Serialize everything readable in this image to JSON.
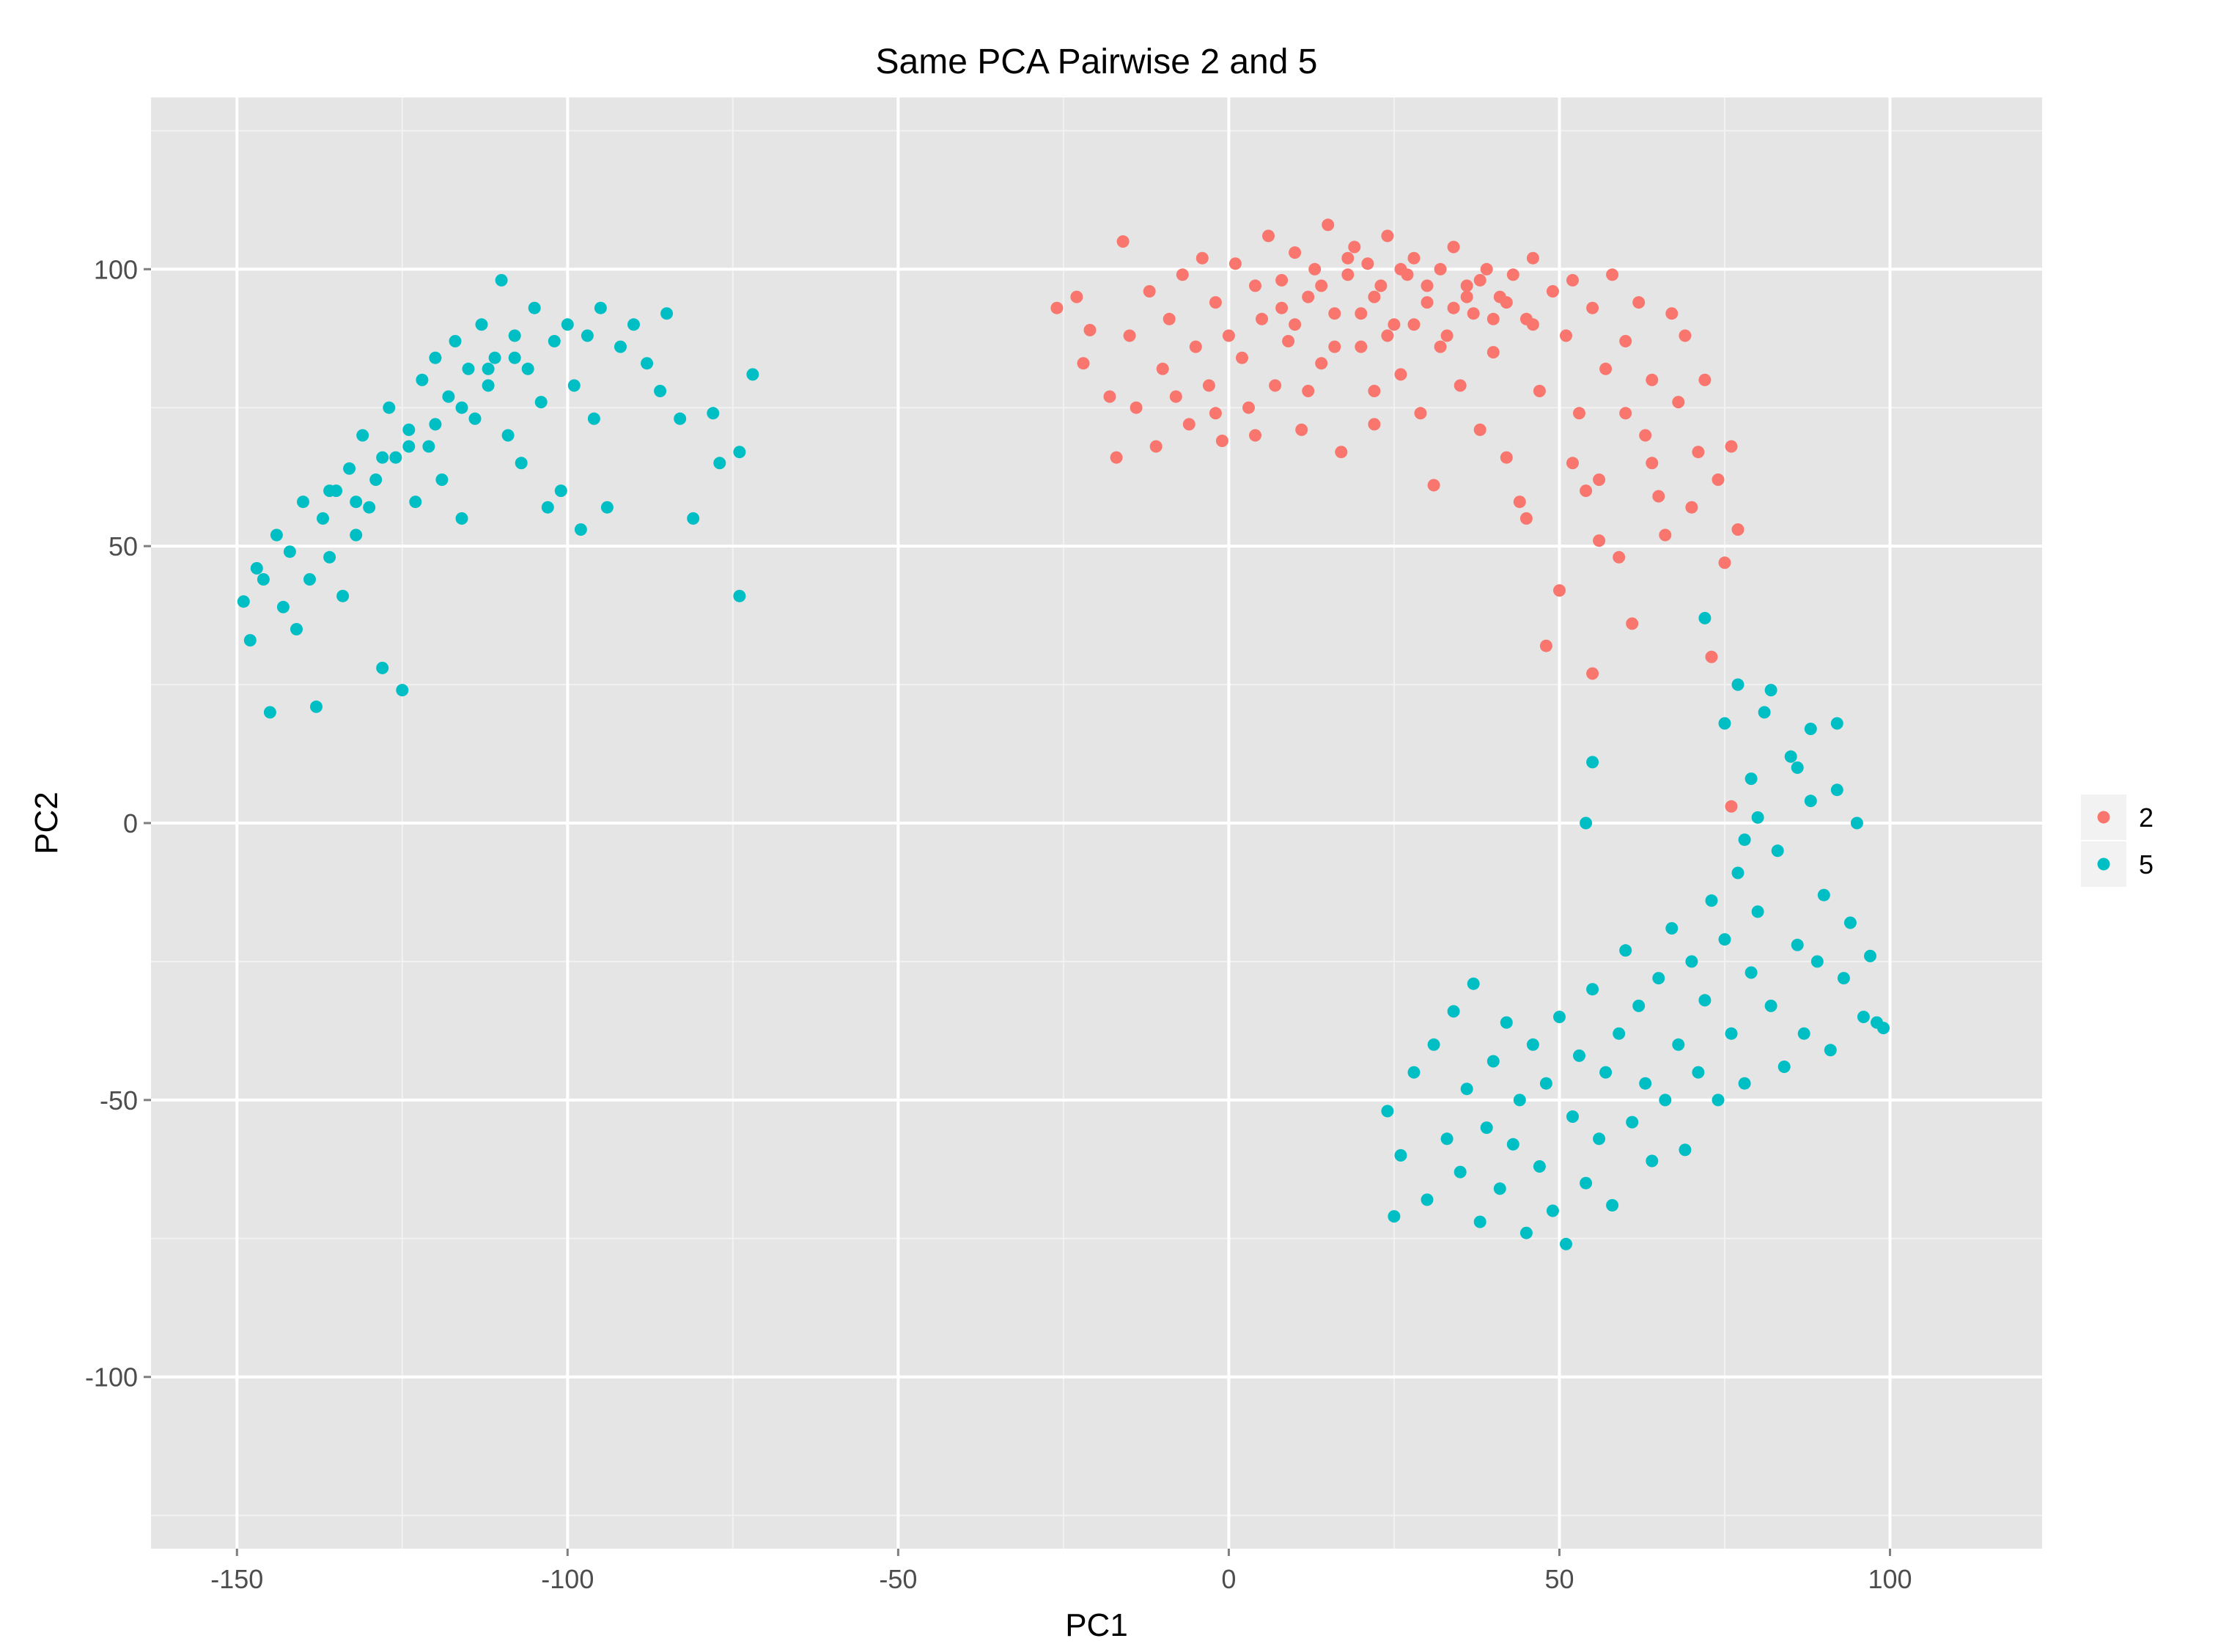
{
  "chart_data": {
    "type": "scatter",
    "title": "Same PCA Pairwise 2 and 5",
    "xlabel": "PC1",
    "ylabel": "PC2",
    "xlim": [
      -163,
      123
    ],
    "ylim": [
      -131,
      131
    ],
    "x_ticks": [
      -150,
      -100,
      -50,
      0,
      50,
      100
    ],
    "y_ticks": [
      -100,
      -50,
      0,
      50,
      100
    ],
    "x_tick_labels": [
      "-150",
      "-100",
      "-50",
      "0",
      "50",
      "100"
    ],
    "y_tick_labels": [
      "-100",
      "-50",
      "0",
      "50",
      "100"
    ],
    "grid": true,
    "legend_position": "right",
    "series": [
      {
        "name": "2",
        "color": "#F8766D",
        "points": [
          [
            -26,
            93
          ],
          [
            -23,
            95
          ],
          [
            -22,
            83
          ],
          [
            -21,
            89
          ],
          [
            -18,
            77
          ],
          [
            -17,
            66
          ],
          [
            -16,
            105
          ],
          [
            -15,
            88
          ],
          [
            -14,
            75
          ],
          [
            -12,
            96
          ],
          [
            -11,
            68
          ],
          [
            -10,
            82
          ],
          [
            -9,
            91
          ],
          [
            -7,
            99
          ],
          [
            -6,
            72
          ],
          [
            -5,
            86
          ],
          [
            -4,
            102
          ],
          [
            -3,
            79
          ],
          [
            -2,
            94
          ],
          [
            -1,
            69
          ],
          [
            0,
            88
          ],
          [
            1,
            101
          ],
          [
            2,
            84
          ],
          [
            3,
            75
          ],
          [
            4,
            97
          ],
          [
            5,
            91
          ],
          [
            6,
            106
          ],
          [
            7,
            79
          ],
          [
            8,
            98
          ],
          [
            9,
            87
          ],
          [
            10,
            103
          ],
          [
            11,
            71
          ],
          [
            12,
            95
          ],
          [
            13,
            100
          ],
          [
            14,
            83
          ],
          [
            15,
            108
          ],
          [
            16,
            92
          ],
          [
            17,
            67
          ],
          [
            18,
            99
          ],
          [
            19,
            104
          ],
          [
            20,
            86
          ],
          [
            21,
            101
          ],
          [
            22,
            78
          ],
          [
            23,
            97
          ],
          [
            24,
            106
          ],
          [
            25,
            90
          ],
          [
            26,
            81
          ],
          [
            27,
            99
          ],
          [
            28,
            102
          ],
          [
            29,
            74
          ],
          [
            30,
            94
          ],
          [
            31,
            61
          ],
          [
            32,
            100
          ],
          [
            33,
            88
          ],
          [
            34,
            104
          ],
          [
            35,
            79
          ],
          [
            36,
            97
          ],
          [
            37,
            92
          ],
          [
            38,
            71
          ],
          [
            39,
            100
          ],
          [
            40,
            85
          ],
          [
            41,
            95
          ],
          [
            42,
            66
          ],
          [
            43,
            99
          ],
          [
            44,
            58
          ],
          [
            45,
            91
          ],
          [
            46,
            102
          ],
          [
            47,
            78
          ],
          [
            48,
            32
          ],
          [
            49,
            96
          ],
          [
            50,
            42
          ],
          [
            51,
            88
          ],
          [
            52,
            98
          ],
          [
            53,
            74
          ],
          [
            54,
            60
          ],
          [
            55,
            93
          ],
          [
            56,
            51
          ],
          [
            57,
            82
          ],
          [
            58,
            99
          ],
          [
            59,
            48
          ],
          [
            60,
            87
          ],
          [
            61,
            36
          ],
          [
            62,
            94
          ],
          [
            63,
            70
          ],
          [
            64,
            80
          ],
          [
            65,
            59
          ],
          [
            66,
            52
          ],
          [
            67,
            92
          ],
          [
            68,
            76
          ],
          [
            69,
            88
          ],
          [
            70,
            57
          ],
          [
            71,
            67
          ],
          [
            72,
            80
          ],
          [
            73,
            30
          ],
          [
            74,
            62
          ],
          [
            75,
            47
          ],
          [
            76,
            68
          ],
          [
            76,
            3
          ],
          [
            77,
            53
          ],
          [
            55,
            27
          ],
          [
            45,
            55
          ],
          [
            52,
            65
          ],
          [
            8,
            93
          ],
          [
            14,
            97
          ],
          [
            18,
            102
          ],
          [
            22,
            95
          ],
          [
            26,
            100
          ],
          [
            30,
            97
          ],
          [
            34,
            93
          ],
          [
            38,
            98
          ],
          [
            42,
            94
          ],
          [
            46,
            90
          ],
          [
            10,
            90
          ],
          [
            16,
            86
          ],
          [
            20,
            92
          ],
          [
            24,
            88
          ],
          [
            28,
            90
          ],
          [
            32,
            86
          ],
          [
            36,
            95
          ],
          [
            40,
            91
          ],
          [
            -8,
            77
          ],
          [
            -2,
            74
          ],
          [
            4,
            70
          ],
          [
            12,
            78
          ],
          [
            22,
            72
          ],
          [
            60,
            74
          ],
          [
            64,
            65
          ],
          [
            56,
            62
          ]
        ]
      },
      {
        "name": "5",
        "color": "#00BFC4",
        "points": [
          [
            -149,
            40
          ],
          [
            -148,
            33
          ],
          [
            -147,
            46
          ],
          [
            -146,
            44
          ],
          [
            -145,
            20
          ],
          [
            -144,
            52
          ],
          [
            -143,
            39
          ],
          [
            -142,
            49
          ],
          [
            -141,
            35
          ],
          [
            -140,
            58
          ],
          [
            -139,
            44
          ],
          [
            -138,
            21
          ],
          [
            -137,
            55
          ],
          [
            -136,
            48
          ],
          [
            -135,
            60
          ],
          [
            -134,
            41
          ],
          [
            -133,
            64
          ],
          [
            -132,
            52
          ],
          [
            -131,
            70
          ],
          [
            -130,
            57
          ],
          [
            -129,
            62
          ],
          [
            -128,
            28
          ],
          [
            -127,
            75
          ],
          [
            -126,
            66
          ],
          [
            -125,
            24
          ],
          [
            -124,
            71
          ],
          [
            -123,
            58
          ],
          [
            -122,
            80
          ],
          [
            -121,
            68
          ],
          [
            -120,
            84
          ],
          [
            -119,
            62
          ],
          [
            -118,
            77
          ],
          [
            -117,
            87
          ],
          [
            -116,
            55
          ],
          [
            -115,
            82
          ],
          [
            -114,
            73
          ],
          [
            -113,
            90
          ],
          [
            -112,
            79
          ],
          [
            -111,
            84
          ],
          [
            -110,
            98
          ],
          [
            -109,
            70
          ],
          [
            -108,
            88
          ],
          [
            -107,
            65
          ],
          [
            -106,
            82
          ],
          [
            -105,
            93
          ],
          [
            -104,
            76
          ],
          [
            -103,
            57
          ],
          [
            -102,
            87
          ],
          [
            -101,
            60
          ],
          [
            -100,
            90
          ],
          [
            -99,
            79
          ],
          [
            -98,
            53
          ],
          [
            -97,
            88
          ],
          [
            -96,
            73
          ],
          [
            -95,
            93
          ],
          [
            -94,
            57
          ],
          [
            -92,
            86
          ],
          [
            -90,
            90
          ],
          [
            -88,
            83
          ],
          [
            -86,
            78
          ],
          [
            -85,
            92
          ],
          [
            -83,
            73
          ],
          [
            -81,
            55
          ],
          [
            -78,
            74
          ],
          [
            -77,
            65
          ],
          [
            -74,
            67
          ],
          [
            -72,
            81
          ],
          [
            -74,
            41
          ],
          [
            -136,
            60
          ],
          [
            -132,
            58
          ],
          [
            -128,
            66
          ],
          [
            -124,
            68
          ],
          [
            -120,
            72
          ],
          [
            -116,
            75
          ],
          [
            -112,
            82
          ],
          [
            -108,
            84
          ],
          [
            25,
            -71
          ],
          [
            24,
            -52
          ],
          [
            26,
            -60
          ],
          [
            28,
            -45
          ],
          [
            30,
            -68
          ],
          [
            31,
            -40
          ],
          [
            33,
            -57
          ],
          [
            34,
            -34
          ],
          [
            35,
            -63
          ],
          [
            36,
            -48
          ],
          [
            37,
            -29
          ],
          [
            38,
            -72
          ],
          [
            39,
            -55
          ],
          [
            40,
            -43
          ],
          [
            41,
            -66
          ],
          [
            42,
            -36
          ],
          [
            43,
            -58
          ],
          [
            44,
            -50
          ],
          [
            45,
            -74
          ],
          [
            46,
            -40
          ],
          [
            47,
            -62
          ],
          [
            48,
            -47
          ],
          [
            49,
            -70
          ],
          [
            50,
            -35
          ],
          [
            51,
            -76
          ],
          [
            52,
            -53
          ],
          [
            53,
            -42
          ],
          [
            54,
            -65
          ],
          [
            55,
            -30
          ],
          [
            56,
            -57
          ],
          [
            57,
            -45
          ],
          [
            58,
            -69
          ],
          [
            59,
            -38
          ],
          [
            60,
            -23
          ],
          [
            61,
            -54
          ],
          [
            62,
            -33
          ],
          [
            63,
            -47
          ],
          [
            64,
            -61
          ],
          [
            65,
            -28
          ],
          [
            66,
            -50
          ],
          [
            67,
            -19
          ],
          [
            68,
            -40
          ],
          [
            69,
            -59
          ],
          [
            70,
            -25
          ],
          [
            71,
            -45
          ],
          [
            72,
            -32
          ],
          [
            73,
            -14
          ],
          [
            74,
            -50
          ],
          [
            75,
            -21
          ],
          [
            76,
            -38
          ],
          [
            77,
            -9
          ],
          [
            78,
            -47
          ],
          [
            79,
            -27
          ],
          [
            80,
            -16
          ],
          [
            81,
            20
          ],
          [
            82,
            -33
          ],
          [
            83,
            -5
          ],
          [
            84,
            -44
          ],
          [
            85,
            12
          ],
          [
            86,
            -22
          ],
          [
            87,
            -38
          ],
          [
            88,
            4
          ],
          [
            89,
            -25
          ],
          [
            90,
            -13
          ],
          [
            91,
            -41
          ],
          [
            92,
            6
          ],
          [
            93,
            -28
          ],
          [
            94,
            -18
          ],
          [
            95,
            0
          ],
          [
            96,
            -35
          ],
          [
            97,
            -24
          ],
          [
            98,
            -36
          ],
          [
            99,
            -37
          ],
          [
            75,
            18
          ],
          [
            77,
            25
          ],
          [
            79,
            8
          ],
          [
            80,
            1
          ],
          [
            78,
            -3
          ],
          [
            72,
            37
          ],
          [
            55,
            11
          ],
          [
            54,
            0
          ],
          [
            82,
            24
          ],
          [
            88,
            17
          ],
          [
            92,
            18
          ],
          [
            86,
            10
          ]
        ]
      }
    ]
  }
}
